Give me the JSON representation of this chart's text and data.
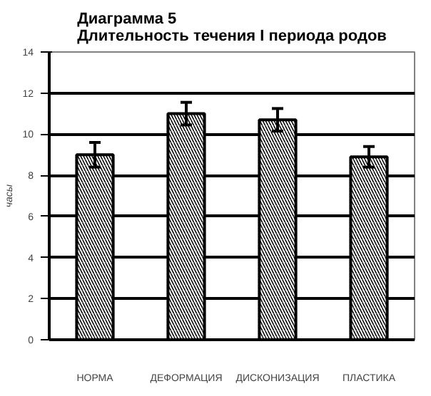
{
  "chart_data": {
    "type": "bar",
    "title": "Диаграмма 5\nДлительность течения I периода родов",
    "ylabel": "часы",
    "categories": [
      "НОРМА",
      "ДЕФОРМАЦИЯ",
      "ДИСКОНИЗАЦИЯ",
      "ПЛАСТИКА"
    ],
    "values": [
      9.0,
      11.0,
      10.7,
      8.9
    ],
    "errors": [
      0.6,
      0.55,
      0.55,
      0.5
    ],
    "color": "#ffffff",
    "ylim": [
      0,
      14
    ],
    "yticks": [
      0,
      2,
      4,
      6,
      8,
      10,
      12,
      14
    ],
    "grid": "y"
  }
}
